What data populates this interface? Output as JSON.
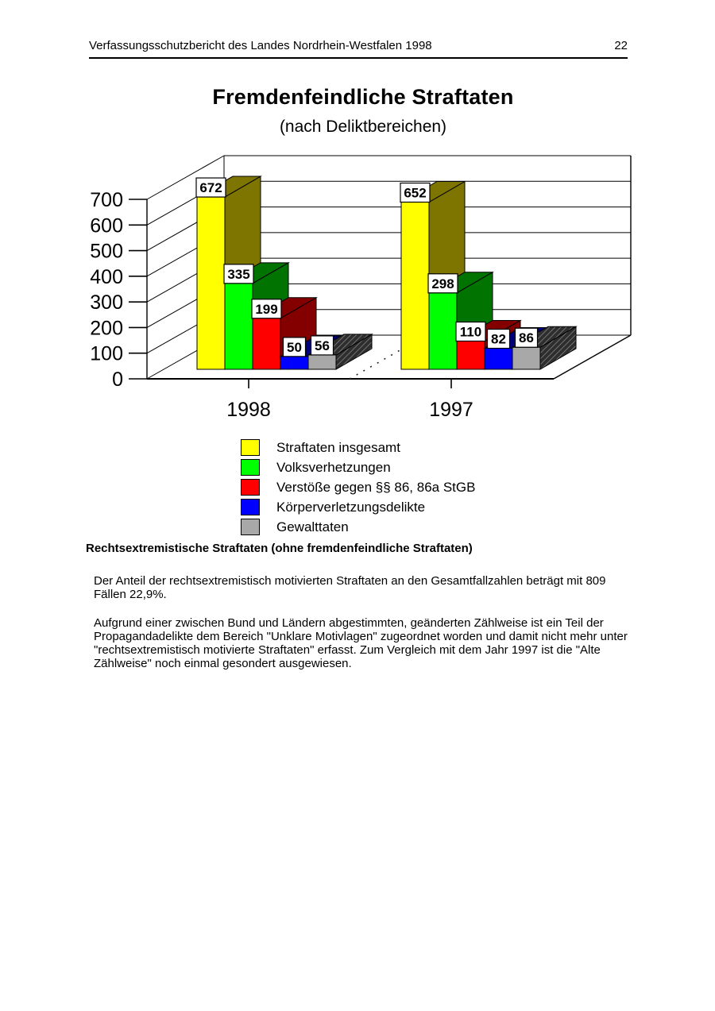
{
  "header": {
    "title": "Verfassungsschutzbericht des Landes Nordrhein-Westfalen 1998",
    "page_number": "22"
  },
  "chart_data": {
    "type": "bar",
    "style": "3d-column",
    "title": "Fremdenfeindliche Straftaten",
    "subtitle": "(nach Deliktbereichen)",
    "categories": [
      "1998",
      "1997"
    ],
    "series": [
      {
        "name": "Straftaten insgesamt",
        "color": "#FFFF00",
        "shade": "#7E7400",
        "values": [
          672,
          652
        ]
      },
      {
        "name": "Volksverhetzungen",
        "color": "#00FF00",
        "shade": "#007300",
        "values": [
          335,
          298
        ]
      },
      {
        "name": "Verstöße gegen §§ 86, 86a StGB",
        "color": "#FF0000",
        "shade": "#840000",
        "values": [
          199,
          110
        ]
      },
      {
        "name": "Körperverletzungsdelikte",
        "color": "#0000FF",
        "shade": "#00007B",
        "values": [
          50,
          82
        ]
      },
      {
        "name": "Gewalttaten",
        "color": "#A8A8A8",
        "shade": "hatch",
        "values": [
          56,
          86
        ]
      }
    ],
    "yticks": [
      0,
      100,
      200,
      300,
      400,
      500,
      600,
      700
    ],
    "ylim": [
      0,
      700
    ],
    "grid": "horizontal-back-wall",
    "legend_position": "bottom",
    "value_labels": true
  },
  "body": {
    "heading": "Rechtsextremistische Straftaten (ohne fremdenfeindliche Straftaten)",
    "paragraphs": [
      "Der Anteil der rechtsextremistisch motivierten Straftaten an den Gesamtfallzahlen beträgt mit 809 Fällen 22,9%.",
      "Aufgrund einer zwischen Bund und Ländern abgestimmten, geänderten Zählweise ist ein Teil der Propagandadelikte dem Bereich \"Unklare Motivlagen\" zugeordnet worden und damit nicht mehr unter \"rechtsextremistisch motivierte Straftaten\" erfasst. Zum Vergleich mit dem Jahr 1997 ist die \"Alte Zählweise\" noch einmal gesondert ausgewiesen."
    ]
  }
}
